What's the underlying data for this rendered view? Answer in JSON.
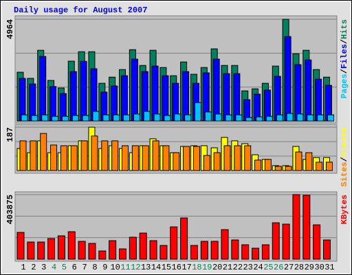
{
  "chart_data": [
    {
      "type": "bar",
      "title": "Daily usage for August 2007",
      "title_color": "#0000ff",
      "ylim": [
        0,
        4964
      ],
      "yticks": [
        4964
      ],
      "legend_separator": "/",
      "series": [
        {
          "name": "Hits",
          "color": "#00805c",
          "values": [
            2380,
            2080,
            3450,
            1980,
            1610,
            2920,
            3380,
            3380,
            1840,
            2140,
            2510,
            3480,
            2710,
            3450,
            2610,
            2210,
            2880,
            2280,
            2610,
            3520,
            2710,
            2710,
            1470,
            1570,
            1840,
            2680,
            4964,
            3280,
            3450,
            2510,
            2140
          ]
        },
        {
          "name": "Files",
          "color": "#0000ff",
          "values": [
            2080,
            1810,
            3150,
            1680,
            1340,
            2410,
            2910,
            2550,
            1410,
            1710,
            2210,
            3020,
            2410,
            2680,
            2210,
            1840,
            2410,
            1840,
            2350,
            3020,
            2310,
            2310,
            1040,
            1310,
            1510,
            2180,
            4120,
            2750,
            2980,
            2040,
            1740
          ]
        },
        {
          "name": "Pages",
          "color": "#00c0ff",
          "values": [
            300,
            270,
            300,
            230,
            230,
            270,
            270,
            470,
            300,
            300,
            300,
            340,
            470,
            340,
            270,
            340,
            300,
            900,
            440,
            340,
            300,
            300,
            170,
            200,
            230,
            300,
            370,
            340,
            300,
            300,
            300
          ]
        }
      ]
    },
    {
      "type": "bar",
      "ylim": [
        0,
        187
      ],
      "yticks": [
        187
      ],
      "legend_separator": "/",
      "series": [
        {
          "name": "Visits",
          "color": "#ffff00",
          "values": [
            95,
            77,
            128,
            77,
            77,
            107,
            128,
            187,
            95,
            107,
            95,
            77,
            107,
            137,
            107,
            77,
            104,
            107,
            107,
            98,
            143,
            128,
            116,
            68,
            48,
            21,
            21,
            104,
            48,
            56,
            56
          ]
        },
        {
          "name": "Sites",
          "color": "#ff8000",
          "values": [
            128,
            128,
            160,
            110,
            107,
            107,
            128,
            149,
            128,
            128,
            107,
            107,
            107,
            128,
            107,
            77,
            104,
            104,
            65,
            77,
            107,
            107,
            107,
            45,
            48,
            18,
            18,
            80,
            77,
            36,
            36
          ]
        }
      ]
    },
    {
      "type": "bar",
      "ylim": [
        0,
        403875
      ],
      "yticks": [
        403875
      ],
      "categories": [
        "1",
        "2",
        "3",
        "4",
        "5",
        "6",
        "7",
        "8",
        "9",
        "10",
        "11",
        "12",
        "13",
        "14",
        "15",
        "16",
        "17",
        "18",
        "19",
        "20",
        "21",
        "22",
        "23",
        "24",
        "25",
        "26",
        "27",
        "28",
        "29",
        "30",
        "31"
      ],
      "label_colors": [
        "#000000",
        "#000000",
        "#000000",
        "#00805c",
        "#00805c",
        "#000000",
        "#000000",
        "#000000",
        "#000000",
        "#000000",
        "#00805c",
        "#00805c",
        "#000000",
        "#000000",
        "#000000",
        "#000000",
        "#000000",
        "#00805c",
        "#00805c",
        "#000000",
        "#000000",
        "#000000",
        "#000000",
        "#000000",
        "#00805c",
        "#00805c",
        "#000000",
        "#000000",
        "#000000",
        "#000000",
        "#000000"
      ],
      "series": [
        {
          "name": "KBytes",
          "color": "#ff0000",
          "values": [
            167540,
            107400,
            107400,
            128880,
            146060,
            171840,
            111700,
            98810,
            51550,
            115990,
            64440,
            137470,
            163250,
            115990,
            85920,
            201910,
            257760,
            85920,
            111700,
            111700,
            184730,
            120290,
            90220,
            68740,
            90220,
            227690,
            219100,
            403875,
            399530,
            214800,
            120290
          ]
        }
      ]
    }
  ]
}
